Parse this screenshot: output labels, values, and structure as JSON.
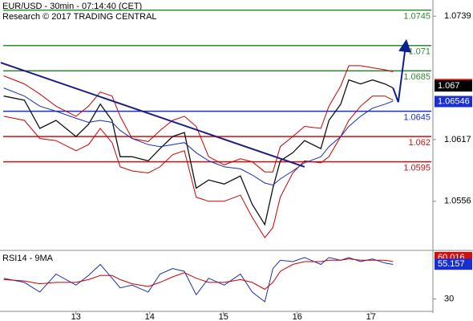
{
  "chart_data": {
    "type": "line",
    "title": "EUR/USD - 30min - 07:14:40 (CET)",
    "subtitle": "Research © 2017 TRADING CENTRAL",
    "x": [
      12.02,
      12.3,
      12.51,
      12.73,
      13.0,
      13.17,
      13.33,
      13.49,
      13.6,
      13.76,
      13.98,
      14.14,
      14.31,
      14.47,
      14.63,
      14.8,
      15.01,
      15.23,
      15.39,
      15.56,
      15.67,
      15.77,
      15.94,
      16.1,
      16.32,
      16.43,
      16.59,
      16.7,
      16.86,
      17.02,
      17.19,
      17.3
    ],
    "xlim": [
      11.97,
      17.84
    ],
    "xticks": [
      13,
      14,
      15,
      16,
      17
    ],
    "ylim": [
      1.0509,
      1.0755
    ],
    "yticks": [
      1.0739,
      1.0617,
      1.0556
    ],
    "series": [
      {
        "name": "Close",
        "color": "#111111",
        "values": [
          1.066,
          1.0656,
          1.0628,
          1.0636,
          1.062,
          1.0632,
          1.0652,
          1.0636,
          1.06,
          1.06,
          1.0596,
          1.0608,
          1.062,
          1.0624,
          1.0569,
          1.0577,
          1.0573,
          1.0581,
          1.0553,
          1.0533,
          1.0569,
          1.0596,
          1.0604,
          1.0616,
          1.0608,
          1.0636,
          1.0652,
          1.0676,
          1.0672,
          1.0676,
          1.0672,
          1.0668
        ]
      },
      {
        "name": "Upper band",
        "color": "#cc0000",
        "values": [
          1.068,
          1.0672,
          1.0662,
          1.065,
          1.064,
          1.065,
          1.0664,
          1.066,
          1.064,
          1.0618,
          1.0615,
          1.0626,
          1.0636,
          1.064,
          1.063,
          1.06,
          1.0592,
          1.0598,
          1.0595,
          1.0585,
          1.0585,
          1.061,
          1.062,
          1.063,
          1.0628,
          1.065,
          1.067,
          1.069,
          1.069,
          1.0688,
          1.0686,
          1.0684
        ]
      },
      {
        "name": "Lower band",
        "color": "#cc0000",
        "values": [
          1.064,
          1.0636,
          1.0618,
          1.0616,
          1.0606,
          1.0612,
          1.0628,
          1.0614,
          1.059,
          1.0586,
          1.0584,
          1.059,
          1.0602,
          1.0606,
          1.056,
          1.0556,
          1.0556,
          1.0562,
          1.054,
          1.052,
          1.053,
          1.056,
          1.0584,
          1.0596,
          1.0594,
          1.06,
          1.062,
          1.0636,
          1.065,
          1.066,
          1.066,
          1.0656
        ]
      },
      {
        "name": "Moving average",
        "color": "#1a2fb0",
        "values": [
          1.0668,
          1.066,
          1.065,
          1.0645,
          1.0638,
          1.0634,
          1.0636,
          1.0634,
          1.0626,
          1.0618,
          1.0612,
          1.061,
          1.0612,
          1.0614,
          1.0604,
          1.0596,
          1.059,
          1.0588,
          1.0582,
          1.0574,
          1.0572,
          1.0578,
          1.0586,
          1.0594,
          1.06,
          1.061,
          1.062,
          1.063,
          1.064,
          1.0648,
          1.0652,
          1.0655
        ]
      }
    ],
    "trendline": {
      "color": "#1c1c80",
      "x": [
        11.98,
        16.1
      ],
      "values": [
        1.0693,
        1.059
      ]
    },
    "forecast": {
      "color": "#0d1f8c",
      "x": [
        17.3,
        17.37,
        17.47
      ],
      "values": [
        1.0668,
        1.0654,
        1.071
      ]
    },
    "levels": [
      {
        "value": 1.0745,
        "color": "#2e8b2e"
      },
      {
        "value": 1.071,
        "color": "#2e8b2e"
      },
      {
        "value": 1.0685,
        "color": "#2e8b2e"
      },
      {
        "value": 1.0645,
        "color": "#1a2fd0"
      },
      {
        "value": 1.062,
        "color": "#d01010"
      },
      {
        "value": 1.0595,
        "color": "#d01010"
      }
    ],
    "markers": [
      {
        "value": 1.06714,
        "color": "#d01010"
      },
      {
        "value": 1.067,
        "color": "#000000"
      },
      {
        "value": 1.06546,
        "color": "#1a2fd0"
      }
    ],
    "rsi": {
      "title": "RSI14 - 9MA",
      "ylim": [
        21,
        64
      ],
      "yticks": [
        30
      ],
      "series": [
        {
          "name": "RSI14",
          "color": "#1a2fb0",
          "values": [
            45,
            42,
            35,
            48,
            40,
            47,
            55,
            45,
            38,
            40,
            35,
            48,
            52,
            50,
            33,
            45,
            40,
            48,
            35,
            28,
            52,
            58,
            57,
            60,
            55,
            60,
            58,
            60,
            57,
            59,
            56,
            55
          ]
        },
        {
          "name": "9MA",
          "color": "#cc0000",
          "values": [
            44,
            43,
            41,
            42,
            42,
            44,
            47,
            47,
            44,
            41,
            39,
            42,
            46,
            49,
            45,
            42,
            42,
            44,
            42,
            37,
            42,
            50,
            55,
            57,
            57,
            58,
            58,
            59,
            58,
            58,
            58,
            57
          ]
        }
      ],
      "markers": [
        {
          "value": 60.016,
          "color": "#d01010"
        },
        {
          "value": 55.157,
          "color": "#1a2fd0"
        }
      ]
    }
  }
}
